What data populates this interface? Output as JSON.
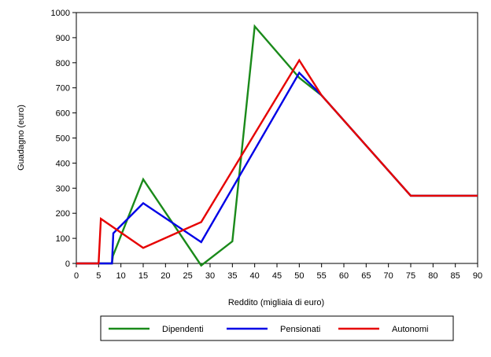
{
  "chart_data": {
    "type": "line",
    "title": "",
    "xlabel": "Reddito (migliaia di euro)",
    "ylabel": "Guadagno (euro)",
    "xlim": [
      0,
      90
    ],
    "ylim": [
      0,
      1000
    ],
    "xticks": [
      0,
      5,
      10,
      15,
      20,
      25,
      30,
      35,
      40,
      45,
      50,
      55,
      60,
      65,
      70,
      75,
      80,
      85,
      90
    ],
    "yticks": [
      0,
      100,
      200,
      300,
      400,
      500,
      600,
      700,
      800,
      900,
      1000
    ],
    "grid": false,
    "legend_position": "bottom",
    "series": [
      {
        "name": "Dipendenti",
        "color": "#1a8a1a",
        "points": [
          [
            0,
            0
          ],
          [
            5,
            0
          ],
          [
            8,
            0
          ],
          [
            8.2,
            30
          ],
          [
            15,
            335
          ],
          [
            28,
            -8
          ],
          [
            35,
            88
          ],
          [
            40,
            945
          ],
          [
            50,
            740
          ],
          [
            55,
            670
          ],
          [
            75,
            270
          ],
          [
            90,
            270
          ]
        ]
      },
      {
        "name": "Pensionati",
        "color": "#0000e6",
        "points": [
          [
            0,
            0
          ],
          [
            5,
            0
          ],
          [
            8,
            0
          ],
          [
            8.3,
            120
          ],
          [
            15,
            240
          ],
          [
            28,
            85
          ],
          [
            50,
            760
          ],
          [
            55,
            670
          ],
          [
            75,
            270
          ],
          [
            90,
            270
          ]
        ]
      },
      {
        "name": "Autonomi",
        "color": "#e60000",
        "points": [
          [
            0,
            0
          ],
          [
            5,
            0
          ],
          [
            5.5,
            178
          ],
          [
            15,
            62
          ],
          [
            28,
            165
          ],
          [
            50,
            810
          ],
          [
            55,
            670
          ],
          [
            75,
            270
          ],
          [
            90,
            270
          ]
        ]
      }
    ]
  }
}
